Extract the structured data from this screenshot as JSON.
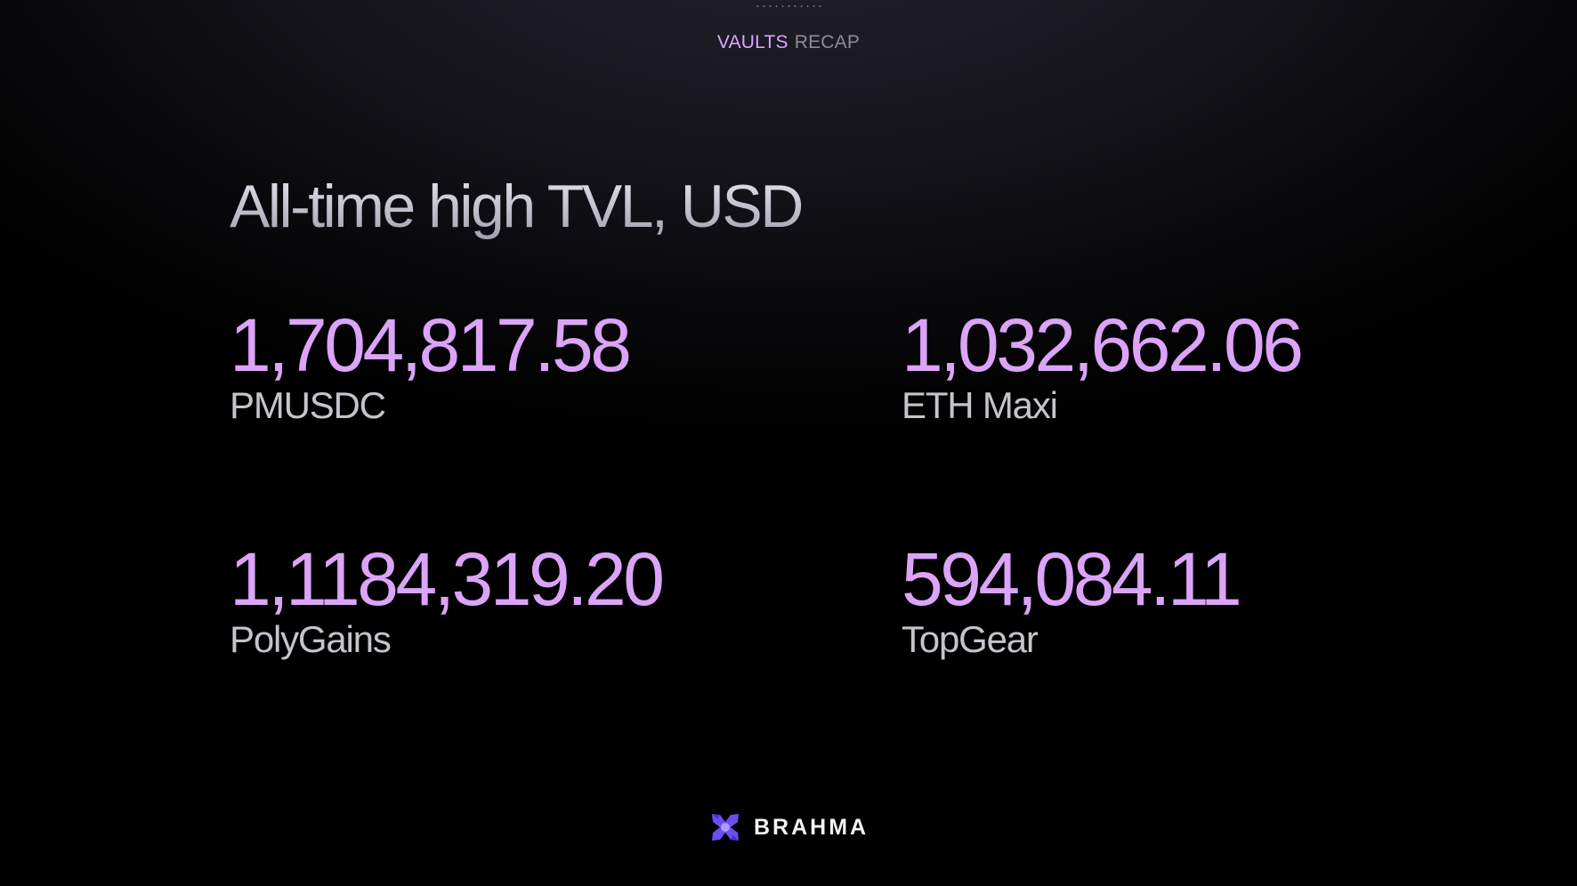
{
  "header": {
    "primary": "VAULTS",
    "secondary": "RECAP"
  },
  "title": "All-time high TVL, USD",
  "stats": [
    {
      "value": "1,704,817.58",
      "label": "PMUSDC"
    },
    {
      "value": "1,032,662.06",
      "label": "ETH Maxi"
    },
    {
      "value": "1,1184,319.20",
      "label": "PolyGains"
    },
    {
      "value": "594,084.11",
      "label": "TopGear"
    }
  ],
  "brand": {
    "name": "BRAHMA",
    "icon": "brahma-logo-icon"
  },
  "colors": {
    "accent": "#dba4f8",
    "header_accent": "#d9a6ff",
    "label": "#c4c4cc",
    "background": "#000000",
    "logo": "#6b4df0"
  }
}
